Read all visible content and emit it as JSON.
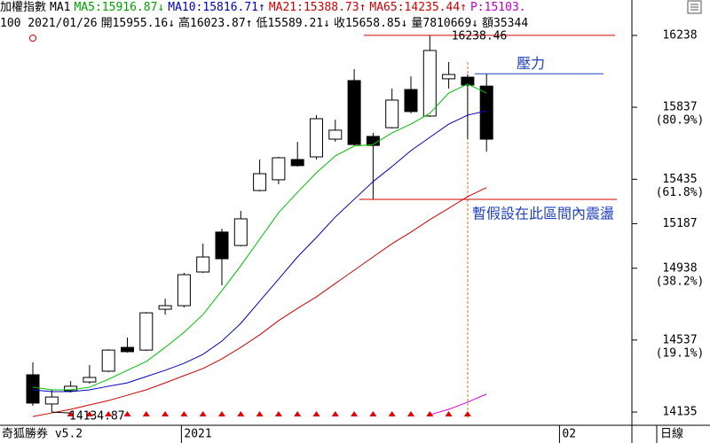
{
  "chart_data": {
    "type": "candlestick",
    "header": {
      "row1": [
        {
          "text": "加權指數",
          "color": "#000000"
        },
        {
          "text": "MA1",
          "color": "#000000"
        },
        {
          "text": "MA5:15916.87↓",
          "color": "#00a000"
        },
        {
          "text": "MA10:15816.71↑",
          "color": "#0000c0"
        },
        {
          "text": "MA21:15388.73↑",
          "color": "#d00000"
        },
        {
          "text": "MA65:14235.44↑",
          "color": "#d00000"
        },
        {
          "text": "P:15103.",
          "color": "#c000c0"
        }
      ],
      "row2": [
        "100 2021/01/26",
        "開15955.16↓",
        "高16023.87↑",
        "低15589.21↓",
        "收15658.85↓",
        "量7810669↓",
        "額35344"
      ]
    },
    "footer": {
      "brand": "奇狐勝券 v5.2",
      "period": "日線"
    },
    "categories": [
      null,
      null,
      null,
      null,
      null,
      null,
      null,
      null,
      "2021",
      null,
      null,
      null,
      null,
      null,
      null,
      null,
      null,
      null,
      null,
      null,
      null,
      null,
      null,
      null,
      null,
      null,
      null,
      null,
      "02",
      null,
      null,
      null
    ],
    "open": [
      14343,
      14180,
      14254,
      14303,
      14363,
      14496,
      14481,
      14709,
      14729,
      14917,
      15140,
      15065,
      15372,
      15432,
      15545,
      15560,
      15659,
      15986,
      15674,
      15723,
      15936,
      15788,
      15996,
      16005,
      15955.16,
      null,
      null,
      null,
      null,
      null,
      null,
      null
    ],
    "high": [
      14412,
      14259,
      14308,
      14397,
      14486,
      14551,
      14694,
      14768,
      14912,
      15075,
      15159,
      15258,
      15545,
      15560,
      15644,
      15793,
      15768,
      16050,
      15694,
      15941,
      16010,
      16238.46,
      16090,
      16020,
      16023.87,
      null,
      null,
      null,
      null,
      null,
      null,
      null
    ],
    "low": [
      14170,
      14134.87,
      14244,
      14293,
      14358,
      14467,
      14476,
      14679,
      14719,
      14912,
      14843,
      15060,
      15367,
      15407,
      15506,
      15545,
      15644,
      15624,
      15323,
      15718,
      15803,
      15783,
      15941,
      15659,
      15589.21,
      null,
      null,
      null,
      null,
      null,
      null,
      null
    ],
    "close": [
      14185,
      14219,
      14279,
      14328,
      14481,
      14472,
      14689,
      14729,
      14902,
      15001,
      14991,
      15214,
      15466,
      15555,
      15511,
      15773,
      15709,
      15629,
      15624,
      15877,
      15813,
      16154,
      16020,
      15961,
      15658.85,
      null,
      null,
      null,
      null,
      null,
      null,
      null
    ],
    "series": [
      {
        "color": "#00c000",
        "values": [
          14274,
          14259,
          14259,
          14274,
          14318,
          14368,
          14417,
          14496,
          14580,
          14679,
          14813,
          14952,
          15100,
          15248,
          15362,
          15471,
          15565,
          15620,
          15629,
          15694,
          15743,
          15803,
          15916,
          15966,
          15916.87,
          null,
          null,
          null,
          null,
          null,
          null,
          null
        ]
      },
      {
        "color": "#0000c0",
        "values": [
          14259,
          14249,
          14249,
          14259,
          14279,
          14298,
          14333,
          14368,
          14407,
          14457,
          14531,
          14630,
          14754,
          14877,
          15001,
          15110,
          15224,
          15323,
          15422,
          15506,
          15595,
          15669,
          15743,
          15793,
          15816.71,
          null,
          null,
          null,
          null,
          null,
          null,
          null
        ]
      },
      {
        "color": "#d00000",
        "values": [
          14110,
          14130,
          14150,
          14175,
          14199,
          14229,
          14259,
          14298,
          14338,
          14378,
          14432,
          14496,
          14566,
          14645,
          14714,
          14778,
          14853,
          14927,
          15001,
          15075,
          15140,
          15209,
          15273,
          15338,
          15388.73,
          null,
          null,
          null,
          null,
          null,
          null,
          null
        ]
      },
      {
        "color": "#e000e0",
        "values": [
          null,
          null,
          null,
          null,
          null,
          null,
          null,
          null,
          null,
          null,
          null,
          null,
          null,
          null,
          null,
          null,
          null,
          null,
          null,
          null,
          null,
          14120,
          14150,
          14190,
          14235.44,
          null,
          null,
          null,
          null,
          null,
          null,
          null
        ]
      }
    ],
    "ylim": [
      14061,
      16337
    ],
    "yticks": [
      14135,
      14537,
      14938,
      15187,
      15435,
      15837,
      16238
    ],
    "ytick_ratios": [
      null,
      "(19.1%)",
      "(38.2%)",
      null,
      "(61.8%)",
      "(80.9%)",
      null
    ],
    "annotations": [
      {
        "value": 16238.46,
        "line_color": "#d00000"
      },
      {
        "label": "壓力",
        "value": 16023.87,
        "line_color": "#2040c0",
        "text_color": "#2040c0"
      },
      {
        "label": "暫假設在此區間內震盪",
        "value": 15323,
        "line_color": "#d00000",
        "text_color": "#2040c0"
      }
    ]
  }
}
